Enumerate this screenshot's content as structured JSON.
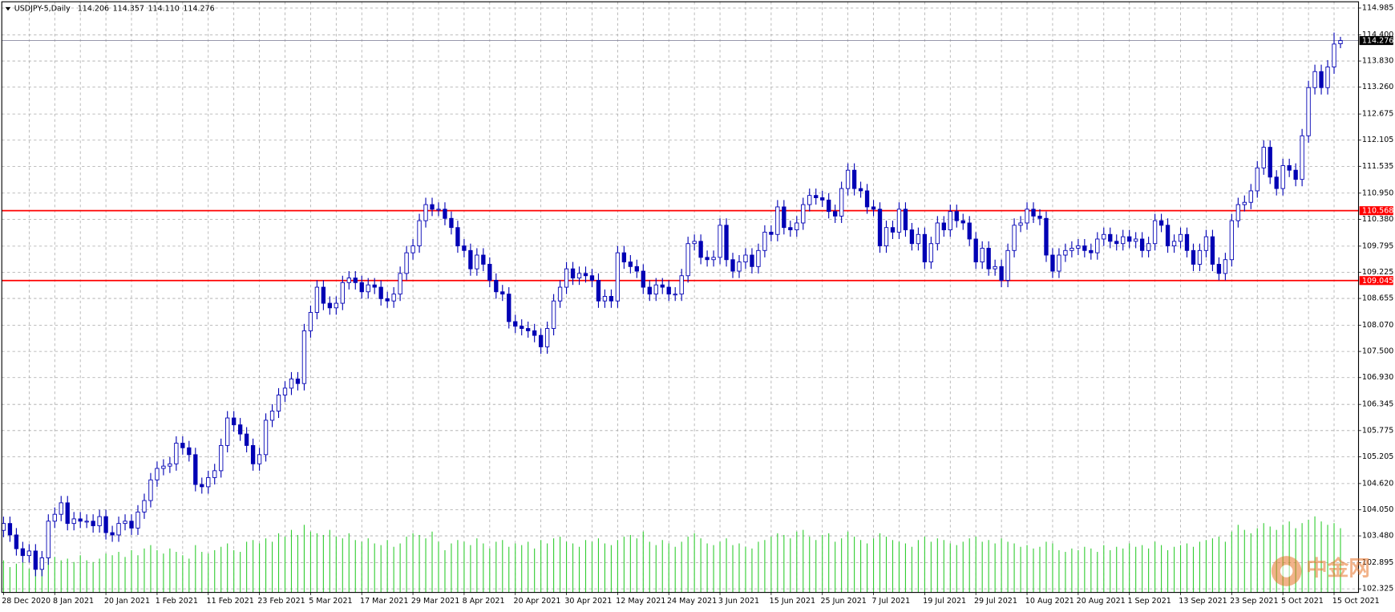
{
  "header": {
    "symbol": "USDJPY-5,Daily",
    "ohlc": [
      "114.206",
      "114.357",
      "114.110",
      "114.276"
    ]
  },
  "watermark": "中金网",
  "chart_data": {
    "type": "candlestick",
    "categories": [
      "28 Dec 2020",
      null,
      null,
      null,
      null,
      null,
      null,
      null,
      "8 Jan 2021",
      null,
      null,
      null,
      null,
      null,
      null,
      null,
      "20 Jan 2021",
      null,
      null,
      null,
      null,
      null,
      null,
      null,
      "1 Feb 2021",
      null,
      null,
      null,
      null,
      null,
      null,
      null,
      "11 Feb 2021",
      null,
      null,
      null,
      null,
      null,
      null,
      null,
      "23 Feb 2021",
      null,
      null,
      null,
      null,
      null,
      null,
      null,
      "5 Mar 2021",
      null,
      null,
      null,
      null,
      null,
      null,
      null,
      "17 Mar 2021",
      null,
      null,
      null,
      null,
      null,
      null,
      null,
      "29 Mar 2021",
      null,
      null,
      null,
      null,
      null,
      null,
      null,
      "8 Apr 2021",
      null,
      null,
      null,
      null,
      null,
      null,
      null,
      "20 Apr 2021",
      null,
      null,
      null,
      null,
      null,
      null,
      null,
      "30 Apr 2021",
      null,
      null,
      null,
      null,
      null,
      null,
      null,
      "12 May 2021",
      null,
      null,
      null,
      null,
      null,
      null,
      null,
      "24 May 2021",
      null,
      null,
      null,
      null,
      null,
      null,
      null,
      "3 Jun 2021",
      null,
      null,
      null,
      null,
      null,
      null,
      null,
      "15 Jun 2021",
      null,
      null,
      null,
      null,
      null,
      null,
      null,
      "25 Jun 2021",
      null,
      null,
      null,
      null,
      null,
      null,
      null,
      "7 Jul 2021",
      null,
      null,
      null,
      null,
      null,
      null,
      null,
      "19 Jul 2021",
      null,
      null,
      null,
      null,
      null,
      null,
      null,
      "29 Jul 2021",
      null,
      null,
      null,
      null,
      null,
      null,
      null,
      "10 Aug 2021",
      null,
      null,
      null,
      null,
      null,
      null,
      null,
      "20 Aug 2021",
      null,
      null,
      null,
      null,
      null,
      null,
      null,
      "1 Sep 2021",
      null,
      null,
      null,
      null,
      null,
      null,
      null,
      "13 Sep 2021",
      null,
      null,
      null,
      null,
      null,
      null,
      null,
      "23 Sep 2021",
      null,
      null,
      null,
      null,
      null,
      null,
      null,
      "5 Oct 2021",
      null,
      null,
      null,
      null,
      null,
      null,
      null,
      "15 Oct 2021",
      null
    ],
    "open": [
      103.6,
      103.75,
      103.5,
      103.2,
      103.05,
      103.15,
      102.75,
      103.0,
      103.8,
      103.95,
      104.2,
      103.75,
      103.85,
      103.8,
      103.8,
      103.7,
      103.9,
      103.55,
      103.5,
      103.75,
      103.8,
      103.65,
      104.0,
      104.25,
      104.7,
      104.95,
      105.0,
      105.05,
      105.5,
      105.4,
      105.25,
      104.6,
      104.55,
      104.75,
      104.9,
      105.45,
      106.05,
      105.9,
      105.7,
      105.45,
      105.05,
      105.25,
      106.0,
      106.2,
      106.55,
      106.7,
      106.9,
      106.8,
      107.95,
      108.35,
      108.9,
      108.55,
      108.45,
      108.55,
      109.0,
      109.1,
      109.0,
      108.8,
      108.95,
      108.9,
      108.65,
      108.6,
      108.75,
      109.2,
      109.65,
      109.8,
      110.35,
      110.7,
      110.6,
      110.6,
      110.4,
      110.2,
      109.8,
      109.7,
      109.3,
      109.6,
      109.4,
      109.05,
      108.8,
      108.75,
      108.15,
      108.05,
      108.0,
      107.95,
      107.85,
      107.6,
      108.0,
      108.6,
      108.9,
      109.3,
      109.1,
      109.2,
      109.15,
      109.05,
      108.6,
      108.7,
      108.6,
      109.65,
      109.45,
      109.35,
      109.25,
      108.9,
      108.75,
      108.95,
      108.9,
      108.75,
      108.75,
      109.15,
      109.85,
      109.9,
      109.55,
      109.5,
      109.55,
      110.25,
      109.5,
      109.25,
      109.45,
      109.6,
      109.35,
      109.7,
      110.1,
      110.05,
      110.65,
      110.2,
      110.15,
      110.3,
      110.7,
      110.9,
      110.85,
      110.8,
      110.55,
      110.45,
      111.05,
      111.45,
      111.05,
      111.0,
      110.65,
      110.6,
      109.8,
      110.2,
      110.1,
      110.6,
      110.15,
      109.85,
      110.05,
      109.45,
      109.85,
      110.3,
      110.15,
      110.55,
      110.35,
      110.3,
      109.95,
      109.45,
      109.75,
      109.3,
      109.35,
      109.05,
      109.7,
      110.25,
      110.3,
      110.6,
      110.45,
      110.4,
      109.6,
      109.25,
      109.6,
      109.7,
      109.75,
      109.8,
      109.7,
      109.65,
      109.95,
      110.05,
      109.9,
      109.85,
      110.0,
      109.9,
      109.95,
      109.7,
      109.85,
      110.35,
      110.25,
      109.8,
      109.9,
      110.05,
      109.7,
      109.4,
      109.7,
      110.0,
      109.4,
      109.2,
      109.5,
      110.35,
      110.7,
      110.75,
      111.0,
      111.5,
      111.95,
      111.3,
      111.05,
      111.55,
      111.45,
      111.25,
      112.2,
      113.25,
      113.6,
      113.25,
      113.7,
      114.206
    ],
    "high": [
      103.9,
      103.9,
      103.65,
      103.35,
      103.3,
      103.3,
      103.15,
      103.95,
      104.1,
      104.35,
      104.35,
      104.0,
      104.0,
      103.95,
      103.95,
      104.05,
      104.05,
      103.7,
      103.9,
      103.95,
      103.95,
      104.15,
      104.4,
      104.85,
      105.1,
      105.15,
      105.2,
      105.65,
      105.65,
      105.55,
      105.4,
      104.75,
      104.9,
      105.05,
      105.6,
      106.2,
      106.2,
      106.05,
      105.85,
      105.6,
      105.4,
      106.15,
      106.35,
      106.7,
      106.85,
      107.05,
      107.05,
      108.1,
      108.5,
      109.05,
      109.05,
      108.7,
      108.7,
      109.15,
      109.25,
      109.25,
      109.15,
      109.1,
      109.1,
      109.05,
      108.8,
      108.9,
      109.35,
      109.8,
      109.95,
      110.5,
      110.85,
      110.85,
      110.75,
      110.75,
      110.55,
      110.35,
      109.95,
      109.85,
      109.75,
      109.75,
      109.55,
      109.2,
      108.95,
      108.9,
      108.3,
      108.2,
      108.15,
      108.1,
      108.0,
      108.15,
      108.75,
      109.05,
      109.45,
      109.45,
      109.35,
      109.35,
      109.3,
      109.2,
      108.85,
      108.85,
      109.8,
      109.8,
      109.6,
      109.5,
      109.4,
      109.05,
      109.1,
      109.1,
      109.05,
      108.9,
      109.3,
      110.0,
      110.05,
      110.05,
      109.7,
      109.7,
      110.4,
      110.4,
      109.65,
      109.6,
      109.75,
      109.75,
      109.85,
      110.25,
      110.25,
      110.8,
      110.8,
      110.35,
      110.45,
      110.85,
      111.05,
      111.05,
      111.0,
      110.95,
      110.7,
      111.2,
      111.6,
      111.6,
      111.2,
      111.15,
      110.8,
      110.75,
      110.35,
      110.35,
      110.75,
      110.75,
      110.3,
      110.2,
      110.2,
      110.0,
      110.45,
      110.45,
      110.7,
      110.7,
      110.5,
      110.45,
      110.1,
      109.9,
      109.9,
      109.5,
      109.5,
      109.85,
      110.4,
      110.45,
      110.75,
      110.75,
      110.6,
      110.55,
      109.75,
      109.75,
      109.85,
      109.9,
      109.95,
      109.95,
      109.85,
      110.1,
      110.2,
      110.2,
      110.05,
      110.15,
      110.15,
      110.1,
      110.1,
      110.0,
      110.5,
      110.5,
      110.4,
      110.05,
      110.2,
      110.2,
      109.85,
      109.85,
      110.15,
      110.15,
      109.55,
      109.65,
      110.5,
      110.85,
      110.9,
      111.15,
      111.65,
      112.1,
      112.1,
      111.45,
      111.7,
      111.7,
      111.6,
      112.35,
      113.4,
      113.75,
      113.75,
      113.85,
      114.45,
      114.357
    ],
    "low": [
      103.45,
      103.35,
      103.05,
      102.9,
      102.9,
      102.6,
      102.6,
      102.85,
      103.65,
      103.8,
      103.6,
      103.6,
      103.65,
      103.65,
      103.55,
      103.55,
      103.4,
      103.35,
      103.35,
      103.6,
      103.5,
      103.5,
      103.85,
      104.1,
      104.55,
      104.8,
      104.85,
      104.9,
      105.25,
      105.1,
      104.45,
      104.4,
      104.4,
      104.6,
      104.75,
      105.3,
      105.75,
      105.55,
      105.3,
      104.9,
      104.9,
      105.1,
      105.85,
      106.05,
      106.4,
      106.55,
      106.65,
      106.65,
      107.8,
      108.2,
      108.4,
      108.3,
      108.3,
      108.4,
      108.85,
      108.85,
      108.65,
      108.65,
      108.75,
      108.5,
      108.45,
      108.45,
      108.6,
      109.05,
      109.5,
      109.65,
      110.2,
      110.45,
      110.45,
      110.25,
      110.05,
      109.65,
      109.55,
      109.15,
      109.15,
      109.25,
      108.9,
      108.65,
      108.6,
      108.0,
      107.9,
      107.85,
      107.8,
      107.7,
      107.45,
      107.45,
      107.85,
      108.45,
      108.75,
      108.95,
      108.95,
      109.0,
      108.9,
      108.45,
      108.45,
      108.45,
      108.45,
      109.3,
      109.2,
      109.1,
      108.75,
      108.6,
      108.6,
      108.75,
      108.6,
      108.6,
      108.6,
      109.0,
      109.7,
      109.4,
      109.35,
      109.35,
      109.4,
      109.35,
      109.1,
      109.1,
      109.3,
      109.2,
      109.2,
      109.55,
      109.9,
      109.9,
      110.05,
      110.0,
      110.0,
      110.15,
      110.55,
      110.7,
      110.65,
      110.4,
      110.3,
      110.3,
      110.9,
      110.9,
      110.85,
      110.5,
      110.45,
      109.65,
      109.65,
      109.95,
      109.95,
      110.0,
      109.7,
      109.7,
      109.3,
      109.3,
      109.7,
      110.0,
      110.0,
      110.2,
      110.15,
      109.8,
      109.3,
      109.3,
      109.15,
      109.15,
      108.9,
      108.9,
      109.55,
      110.1,
      110.15,
      110.3,
      110.25,
      109.45,
      109.1,
      109.1,
      109.45,
      109.55,
      109.6,
      109.55,
      109.5,
      109.5,
      109.8,
      109.75,
      109.7,
      109.7,
      109.75,
      109.75,
      109.55,
      109.55,
      109.7,
      110.1,
      109.65,
      109.65,
      109.75,
      109.55,
      109.25,
      109.25,
      109.55,
      109.25,
      109.05,
      109.05,
      109.35,
      110.2,
      110.55,
      110.6,
      110.85,
      111.35,
      111.15,
      110.9,
      110.9,
      111.3,
      111.1,
      111.1,
      112.05,
      113.1,
      113.1,
      113.1,
      113.55,
      114.11
    ],
    "close": [
      103.75,
      103.5,
      103.2,
      103.05,
      103.15,
      102.75,
      103.0,
      103.8,
      103.95,
      104.2,
      103.75,
      103.85,
      103.8,
      103.8,
      103.7,
      103.9,
      103.55,
      103.5,
      103.75,
      103.8,
      103.65,
      104.0,
      104.25,
      104.7,
      104.95,
      105.0,
      105.05,
      105.5,
      105.4,
      105.25,
      104.6,
      104.55,
      104.75,
      104.9,
      105.45,
      106.05,
      105.9,
      105.7,
      105.45,
      105.05,
      105.25,
      106.0,
      106.2,
      106.55,
      106.7,
      106.9,
      106.8,
      107.95,
      108.35,
      108.9,
      108.55,
      108.45,
      108.55,
      109.0,
      109.1,
      109.0,
      108.8,
      108.95,
      108.9,
      108.65,
      108.6,
      108.75,
      109.2,
      109.65,
      109.8,
      110.35,
      110.7,
      110.6,
      110.6,
      110.4,
      110.2,
      109.8,
      109.7,
      109.3,
      109.6,
      109.4,
      109.05,
      108.8,
      108.75,
      108.15,
      108.05,
      108.0,
      107.95,
      107.85,
      107.6,
      108.0,
      108.6,
      108.9,
      109.3,
      109.1,
      109.2,
      109.15,
      109.05,
      108.6,
      108.7,
      108.6,
      109.65,
      109.45,
      109.35,
      109.25,
      108.9,
      108.75,
      108.95,
      108.9,
      108.75,
      108.75,
      109.15,
      109.85,
      109.9,
      109.55,
      109.5,
      109.55,
      110.25,
      109.5,
      109.25,
      109.45,
      109.6,
      109.35,
      109.7,
      110.1,
      110.05,
      110.65,
      110.2,
      110.15,
      110.3,
      110.7,
      110.9,
      110.85,
      110.8,
      110.55,
      110.45,
      111.05,
      111.45,
      111.05,
      111.0,
      110.65,
      110.6,
      109.8,
      110.2,
      110.1,
      110.6,
      110.15,
      109.85,
      110.05,
      109.45,
      109.85,
      110.3,
      110.15,
      110.55,
      110.35,
      110.3,
      109.95,
      109.45,
      109.75,
      109.3,
      109.35,
      109.05,
      109.7,
      110.25,
      110.3,
      110.6,
      110.45,
      110.4,
      109.6,
      109.25,
      109.6,
      109.7,
      109.75,
      109.8,
      109.7,
      109.65,
      109.95,
      110.05,
      109.9,
      109.85,
      110.0,
      109.9,
      109.95,
      109.7,
      109.85,
      110.35,
      110.25,
      109.8,
      109.9,
      110.05,
      109.7,
      109.4,
      109.7,
      110.0,
      109.4,
      109.2,
      109.5,
      110.35,
      110.7,
      110.75,
      111.0,
      111.5,
      111.95,
      111.3,
      111.05,
      111.55,
      111.45,
      111.25,
      112.2,
      113.25,
      113.6,
      113.25,
      113.7,
      114.2,
      114.276
    ],
    "volume": [
      38,
      30,
      34,
      36,
      28,
      32,
      40,
      45,
      42,
      38,
      40,
      36,
      44,
      38,
      36,
      40,
      46,
      44,
      48,
      42,
      50,
      44,
      52,
      56,
      50,
      46,
      52,
      48,
      44,
      40,
      56,
      48,
      46,
      50,
      54,
      58,
      50,
      48,
      60,
      62,
      58,
      64,
      60,
      70,
      66,
      74,
      68,
      80,
      72,
      70,
      68,
      74,
      66,
      64,
      70,
      62,
      60,
      64,
      58,
      56,
      62,
      54,
      58,
      66,
      70,
      68,
      64,
      72,
      60,
      50,
      58,
      62,
      60,
      56,
      64,
      58,
      52,
      60,
      62,
      54,
      58,
      56,
      60,
      52,
      62,
      58,
      64,
      66,
      60,
      58,
      54,
      62,
      60,
      64,
      58,
      56,
      62,
      66,
      68,
      64,
      72,
      60,
      56,
      62,
      58,
      54,
      60,
      66,
      70,
      64,
      58,
      56,
      60,
      64,
      56,
      58,
      54,
      52,
      60,
      62,
      66,
      70,
      68,
      64,
      72,
      74,
      66,
      62,
      68,
      70,
      60,
      64,
      72,
      66,
      62,
      58,
      64,
      70,
      66,
      62,
      60,
      58,
      54,
      62,
      66,
      60,
      64,
      62,
      58,
      56,
      60,
      64,
      66,
      60,
      62,
      58,
      64,
      60,
      58,
      54,
      56,
      52,
      54,
      60,
      58,
      50,
      48,
      52,
      50,
      54,
      52,
      48,
      56,
      50,
      54,
      52,
      58,
      54,
      56,
      52,
      60,
      56,
      50,
      54,
      56,
      58,
      54,
      60,
      62,
      64,
      66,
      60,
      72,
      80,
      74,
      70,
      76,
      82,
      78,
      74,
      80,
      84,
      76,
      82,
      86,
      90,
      84,
      80,
      82,
      76
    ],
    "up_color": "#0000b4",
    "down_color": "#0000b4",
    "volume_color": "#32cd32",
    "grid": true,
    "ylim": [
      102.247,
      115.121
    ],
    "yticks": [
      {
        "value": 102.325,
        "label": "102.325"
      },
      {
        "value": 102.895,
        "label": "102.895"
      },
      {
        "value": 103.48,
        "label": "103.480"
      },
      {
        "value": 104.05,
        "label": "104.050"
      },
      {
        "value": 104.62,
        "label": "104.620"
      },
      {
        "value": 105.205,
        "label": "105.205"
      },
      {
        "value": 105.775,
        "label": "105.775"
      },
      {
        "value": 106.345,
        "label": "106.345"
      },
      {
        "value": 106.93,
        "label": "106.930"
      },
      {
        "value": 107.5,
        "label": "107.500"
      },
      {
        "value": 108.07,
        "label": "108.070"
      },
      {
        "value": 108.655,
        "label": "108.655"
      },
      {
        "value": 109.225,
        "label": "109.225"
      },
      {
        "value": 109.795,
        "label": "109.795"
      },
      {
        "value": 110.38,
        "label": "110.380"
      },
      {
        "value": 110.95,
        "label": "110.950"
      },
      {
        "value": 111.535,
        "label": "111.535"
      },
      {
        "value": 112.105,
        "label": "112.105"
      },
      {
        "value": 112.675,
        "label": "112.675"
      },
      {
        "value": 113.26,
        "label": "113.260"
      },
      {
        "value": 113.83,
        "label": "113.830"
      },
      {
        "value": 114.4,
        "label": "114.400"
      },
      {
        "value": 114.985,
        "label": "114.985"
      }
    ],
    "levels": [
      {
        "value": 110.568,
        "color": "#ff0000"
      },
      {
        "value": 109.045,
        "color": "#ff0000"
      }
    ]
  }
}
